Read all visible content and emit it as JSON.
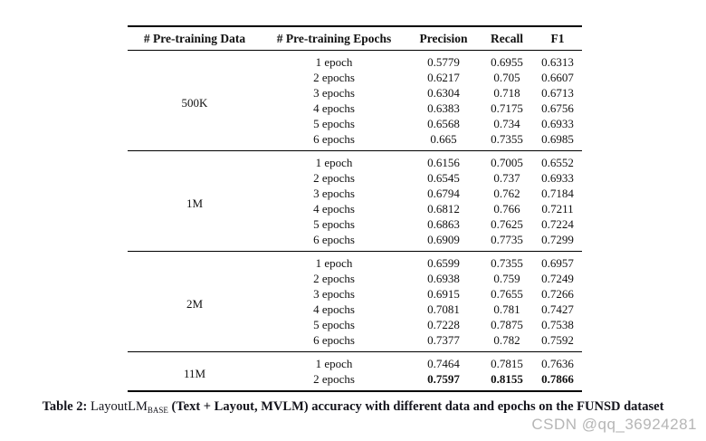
{
  "colors": {
    "rule": "#000000",
    "body_text": "#111111",
    "caption_text": "#14141c",
    "watermark_text": "#b6b6b6",
    "background": "#ffffff"
  },
  "table": {
    "headers": [
      "# Pre-training Data",
      "# Pre-training Epochs",
      "Precision",
      "Recall",
      "F1"
    ],
    "groups": [
      {
        "data_size": "500K",
        "rows": [
          {
            "epochs": "1 epoch",
            "precision": "0.5779",
            "recall": "0.6955",
            "f1": "0.6313",
            "bold": false
          },
          {
            "epochs": "2 epochs",
            "precision": "0.6217",
            "recall": "0.705",
            "f1": "0.6607",
            "bold": false
          },
          {
            "epochs": "3 epochs",
            "precision": "0.6304",
            "recall": "0.718",
            "f1": "0.6713",
            "bold": false
          },
          {
            "epochs": "4 epochs",
            "precision": "0.6383",
            "recall": "0.7175",
            "f1": "0.6756",
            "bold": false
          },
          {
            "epochs": "5 epochs",
            "precision": "0.6568",
            "recall": "0.734",
            "f1": "0.6933",
            "bold": false
          },
          {
            "epochs": "6 epochs",
            "precision": "0.665",
            "recall": "0.7355",
            "f1": "0.6985",
            "bold": false
          }
        ]
      },
      {
        "data_size": "1M",
        "rows": [
          {
            "epochs": "1 epoch",
            "precision": "0.6156",
            "recall": "0.7005",
            "f1": "0.6552",
            "bold": false
          },
          {
            "epochs": "2 epochs",
            "precision": "0.6545",
            "recall": "0.737",
            "f1": "0.6933",
            "bold": false
          },
          {
            "epochs": "3 epochs",
            "precision": "0.6794",
            "recall": "0.762",
            "f1": "0.7184",
            "bold": false
          },
          {
            "epochs": "4 epochs",
            "precision": "0.6812",
            "recall": "0.766",
            "f1": "0.7211",
            "bold": false
          },
          {
            "epochs": "5 epochs",
            "precision": "0.6863",
            "recall": "0.7625",
            "f1": "0.7224",
            "bold": false
          },
          {
            "epochs": "6 epochs",
            "precision": "0.6909",
            "recall": "0.7735",
            "f1": "0.7299",
            "bold": false
          }
        ]
      },
      {
        "data_size": "2M",
        "rows": [
          {
            "epochs": "1 epoch",
            "precision": "0.6599",
            "recall": "0.7355",
            "f1": "0.6957",
            "bold": false
          },
          {
            "epochs": "2 epochs",
            "precision": "0.6938",
            "recall": "0.759",
            "f1": "0.7249",
            "bold": false
          },
          {
            "epochs": "3 epochs",
            "precision": "0.6915",
            "recall": "0.7655",
            "f1": "0.7266",
            "bold": false
          },
          {
            "epochs": "4 epochs",
            "precision": "0.7081",
            "recall": "0.781",
            "f1": "0.7427",
            "bold": false
          },
          {
            "epochs": "5 epochs",
            "precision": "0.7228",
            "recall": "0.7875",
            "f1": "0.7538",
            "bold": false
          },
          {
            "epochs": "6 epochs",
            "precision": "0.7377",
            "recall": "0.782",
            "f1": "0.7592",
            "bold": false
          }
        ]
      },
      {
        "data_size": "11M",
        "rows": [
          {
            "epochs": "1 epoch",
            "precision": "0.7464",
            "recall": "0.7815",
            "f1": "0.7636",
            "bold": false
          },
          {
            "epochs": "2 epochs",
            "precision": "0.7597",
            "recall": "0.8155",
            "f1": "0.7866",
            "bold": true
          }
        ]
      }
    ]
  },
  "caption": {
    "label": "Table 2:",
    "model": "LayoutLM",
    "model_sub": "BASE",
    "rest": "(Text + Layout, MVLM) accuracy with different data and epochs on the FUNSD dataset"
  },
  "watermark": {
    "text": "CSDN @qq_36924281"
  }
}
